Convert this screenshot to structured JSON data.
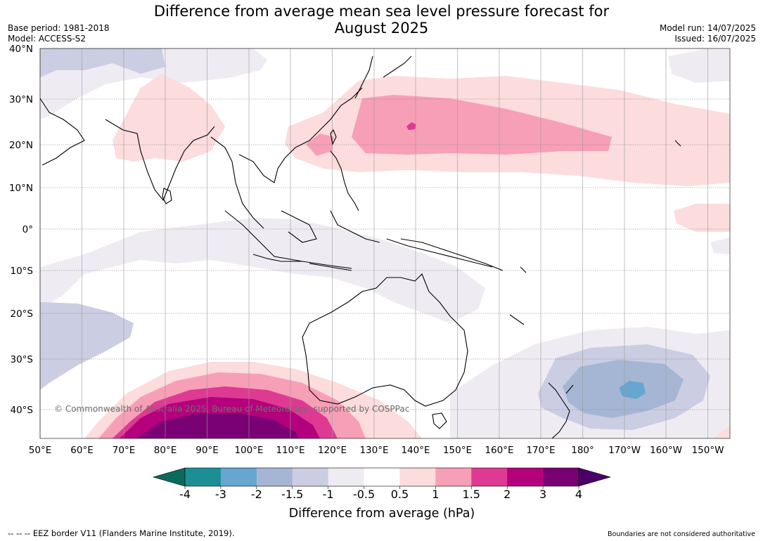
{
  "title_line1": "Difference from average mean sea level pressure forecast for",
  "title_line2": "August 2025",
  "meta_left": {
    "base_period": "Base period: 1981-2018",
    "model": "Model: ACCESS-S2"
  },
  "meta_right": {
    "model_run": "Model run: 14/07/2025",
    "issued": "Issued: 16/07/2025"
  },
  "map": {
    "lon_labels": [
      "50°E",
      "60°E",
      "70°E",
      "80°E",
      "90°E",
      "100°E",
      "110°E",
      "120°E",
      "130°E",
      "140°E",
      "150°E",
      "160°E",
      "170°E",
      "180°",
      "170°W",
      "160°W",
      "150°W"
    ],
    "lat_labels": [
      "40°N",
      "30°N",
      "20°N",
      "10°N",
      "0°",
      "10°S",
      "20°S",
      "30°S",
      "40°S"
    ],
    "copyright": "© Commonwealth of Australia 2025, Bureau of Meteorology, supported by COSPPac"
  },
  "colorbar": {
    "ticks": [
      "-4",
      "-3",
      "-2",
      "-1.5",
      "-1",
      "-0.5",
      "0.5",
      "1",
      "1.5",
      "2",
      "3",
      "4"
    ],
    "colors": [
      "#0b6b5a",
      "#1c8f96",
      "#66a6cf",
      "#a5b6d4",
      "#cbcde2",
      "#efebf3",
      "#ffffff",
      "#fcdcdc",
      "#f79fb7",
      "#de3a93",
      "#b4007c",
      "#7a0175",
      "#4a0068"
    ],
    "title": "Difference from average (hPa)"
  },
  "footer": {
    "eez_note": "--  --  -- EEZ border V11 (Flanders Marine Institute, 2019).",
    "boundaries_note": "Boundaries are not considered authoritative"
  }
}
